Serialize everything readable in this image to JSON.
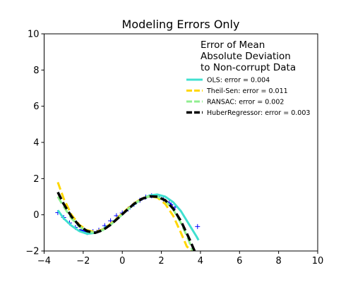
{
  "chart_data": {
    "type": "line",
    "title": "Modeling Errors Only",
    "xlabel": "",
    "ylabel": "",
    "xlim": [
      -4,
      10
    ],
    "ylim": [
      -2,
      10
    ],
    "xticks": [
      -4,
      -2,
      0,
      2,
      4,
      6,
      8,
      10
    ],
    "yticks": [
      -2,
      0,
      2,
      4,
      6,
      8,
      10
    ],
    "grid": false,
    "legend": {
      "placement": "top-right",
      "title_lines": [
        "Error of Mean",
        "Absolute Deviation",
        "to Non-corrupt Data"
      ]
    },
    "data_points": {
      "color": "#0000ff",
      "marker": "+",
      "x": [
        -3.3,
        -3.0,
        -2.7,
        -2.4,
        -2.1,
        -1.8,
        -1.5,
        -1.2,
        -0.9,
        -0.6,
        -0.3,
        0.0,
        0.3,
        0.6,
        0.9,
        1.2,
        1.5,
        1.8,
        2.1,
        2.4,
        2.7,
        3.85
      ],
      "y": [
        0.12,
        -0.15,
        -0.45,
        -0.7,
        -0.85,
        -0.98,
        -0.93,
        -0.85,
        -0.6,
        -0.33,
        -0.05,
        0.1,
        0.32,
        0.58,
        0.8,
        0.98,
        1.05,
        1.02,
        0.85,
        0.65,
        0.42,
        -0.65
      ]
    },
    "true_curve": {
      "color": "#0000ff",
      "x": [
        -2.2,
        -1.8,
        -1.4,
        -1.0,
        -0.6,
        -0.2,
        0.2,
        0.6,
        1.0,
        1.4,
        1.8,
        2.2,
        2.6
      ],
      "y": [
        -0.81,
        -0.97,
        -1.0,
        -0.84,
        -0.56,
        -0.2,
        0.2,
        0.56,
        0.84,
        0.99,
        0.97,
        0.81,
        0.52
      ]
    },
    "series": [
      {
        "name": "OLS: error = 0.004",
        "color": "#40e0d0",
        "style": "solid",
        "width": 3,
        "x": [
          -3.3,
          -3.0,
          -2.6,
          -2.2,
          -1.8,
          -1.4,
          -1.0,
          -0.6,
          -0.2,
          0.2,
          0.6,
          1.0,
          1.4,
          1.8,
          2.2,
          2.6,
          3.0,
          3.4,
          3.8,
          3.9
        ],
        "y": [
          0.25,
          -0.2,
          -0.6,
          -0.9,
          -1.05,
          -1.0,
          -0.8,
          -0.5,
          -0.15,
          0.22,
          0.57,
          0.88,
          1.07,
          1.12,
          1.0,
          0.7,
          0.2,
          -0.5,
          -1.2,
          -1.4
        ]
      },
      {
        "name": "Theil-Sen: error = 0.011",
        "color": "#ffd700",
        "style": "dashed",
        "width": 3,
        "x": [
          -3.3,
          -3.0,
          -2.6,
          -2.2,
          -1.8,
          -1.4,
          -1.0,
          -0.6,
          -0.2,
          0.2,
          0.6,
          1.0,
          1.4,
          1.8,
          2.2,
          2.6,
          3.0,
          3.3,
          3.55
        ],
        "y": [
          1.8,
          0.9,
          0.0,
          -0.55,
          -0.85,
          -0.95,
          -0.82,
          -0.5,
          -0.12,
          0.27,
          0.63,
          0.9,
          1.02,
          0.95,
          0.6,
          -0.05,
          -1.0,
          -1.75,
          -2.0
        ]
      },
      {
        "name": "RANSAC: error = 0.002",
        "color": "#90ee90",
        "style": "dashed",
        "width": 3,
        "x": [
          -3.3,
          -3.0,
          -2.6,
          -2.2,
          -1.8,
          -1.4,
          -1.0,
          -0.6,
          -0.2,
          0.2,
          0.6,
          1.0,
          1.4,
          1.8,
          2.2,
          2.6,
          3.0,
          3.4,
          3.6
        ],
        "y": [
          1.0,
          0.45,
          -0.2,
          -0.65,
          -0.92,
          -1.0,
          -0.85,
          -0.55,
          -0.18,
          0.22,
          0.6,
          0.88,
          1.02,
          1.0,
          0.78,
          0.3,
          -0.45,
          -1.4,
          -2.0
        ]
      },
      {
        "name": "HuberRegressor: error = 0.003",
        "color": "#000000",
        "style": "dashed",
        "width": 3.5,
        "x": [
          -3.3,
          -3.0,
          -2.6,
          -2.2,
          -1.8,
          -1.4,
          -1.0,
          -0.6,
          -0.2,
          0.2,
          0.6,
          1.0,
          1.4,
          1.8,
          2.2,
          2.6,
          3.0,
          3.4,
          3.7
        ],
        "y": [
          1.25,
          0.6,
          -0.1,
          -0.6,
          -0.9,
          -1.0,
          -0.85,
          -0.55,
          -0.17,
          0.23,
          0.6,
          0.88,
          1.02,
          1.0,
          0.8,
          0.35,
          -0.35,
          -1.25,
          -2.0
        ]
      }
    ]
  }
}
